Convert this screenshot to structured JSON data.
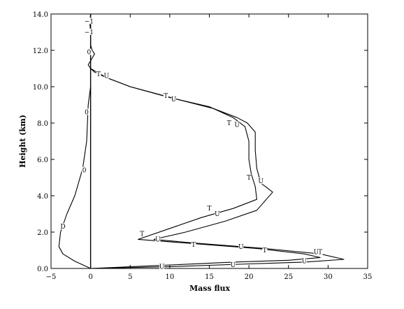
{
  "chart_data": {
    "type": "line",
    "title": "",
    "xlabel": "Mass flux",
    "ylabel": "Height (km)",
    "xlim": [
      -5,
      35
    ],
    "ylim": [
      0,
      14
    ],
    "x_ticks": [
      -5,
      0,
      5,
      10,
      15,
      20,
      25,
      30,
      35
    ],
    "y_ticks": [
      0.0,
      2.0,
      4.0,
      6.0,
      8.0,
      10.0,
      12.0,
      14.0
    ],
    "x_tick_labels": [
      "−5",
      "0",
      "5",
      "10",
      "15",
      "20",
      "25",
      "30",
      "35"
    ],
    "y_tick_labels": [
      "0.0",
      "2.0",
      "4.0",
      "6.0",
      "8.0",
      "10.0",
      "12.0",
      "14.0"
    ],
    "grid": false,
    "legend": "none",
    "line_color": "#000000",
    "reference_line_x": 0,
    "series": [
      {
        "name": "T",
        "label_color": "#000000",
        "points": [
          [
            0,
            0
          ],
          [
            8,
            0.15
          ],
          [
            18,
            0.35
          ],
          [
            25,
            0.45
          ],
          [
            29,
            0.6
          ],
          [
            27,
            0.8
          ],
          [
            21,
            1.1
          ],
          [
            12,
            1.4
          ],
          [
            6,
            1.6
          ],
          [
            10,
            2.2
          ],
          [
            14,
            2.8
          ],
          [
            18,
            3.3
          ],
          [
            21,
            3.8
          ],
          [
            20.8,
            4.5
          ],
          [
            20.3,
            5.2
          ],
          [
            20.0,
            6.0
          ],
          [
            20.0,
            7.0
          ],
          [
            19.5,
            7.8
          ],
          [
            18,
            8.3
          ],
          [
            15,
            8.9
          ],
          [
            10,
            9.4
          ],
          [
            5,
            10.0
          ],
          [
            2,
            10.5
          ],
          [
            0.8,
            10.8
          ],
          [
            0,
            11.0
          ],
          [
            -0.3,
            11.2
          ],
          [
            0.1,
            11.5
          ],
          [
            0.5,
            11.8
          ],
          [
            0.2,
            12.0
          ],
          [
            0,
            12.3
          ],
          [
            0,
            13.0
          ],
          [
            -0.1,
            13.5
          ],
          [
            0,
            14.0
          ]
        ],
        "marker_labels": [
          {
            "text": "T",
            "x": 1.0,
            "y": 10.7
          },
          {
            "text": "T",
            "x": 9.5,
            "y": 9.5
          },
          {
            "text": "T",
            "x": 17.5,
            "y": 8.0
          },
          {
            "text": "T",
            "x": 20.0,
            "y": 5.0
          },
          {
            "text": "T",
            "x": 15.0,
            "y": 3.3
          },
          {
            "text": "T",
            "x": 6.5,
            "y": 1.9
          },
          {
            "text": "T",
            "x": 13.0,
            "y": 1.3
          },
          {
            "text": "T",
            "x": 22.0,
            "y": 1.0
          },
          {
            "text": "T",
            "x": 29.0,
            "y": 0.9
          }
        ]
      },
      {
        "name": "U",
        "label_color": "#000000",
        "points": [
          [
            0,
            0
          ],
          [
            10,
            0.1
          ],
          [
            20,
            0.25
          ],
          [
            27,
            0.35
          ],
          [
            32,
            0.5
          ],
          [
            29,
            0.8
          ],
          [
            22,
            1.1
          ],
          [
            13,
            1.4
          ],
          [
            8,
            1.6
          ],
          [
            12,
            2.0
          ],
          [
            17,
            2.6
          ],
          [
            21,
            3.2
          ],
          [
            23,
            4.2
          ],
          [
            21.5,
            4.7
          ],
          [
            21.0,
            5.5
          ],
          [
            20.8,
            6.5
          ],
          [
            20.8,
            7.5
          ],
          [
            19.8,
            8.0
          ],
          [
            18.5,
            8.3
          ],
          [
            15.5,
            8.8
          ],
          [
            11,
            9.3
          ],
          [
            5,
            10.0
          ],
          [
            2,
            10.5
          ],
          [
            0.5,
            10.8
          ],
          [
            0,
            11.0
          ]
        ],
        "marker_labels": [
          {
            "text": "U",
            "x": 2.0,
            "y": 10.6
          },
          {
            "text": "U",
            "x": 10.5,
            "y": 9.3
          },
          {
            "text": "U",
            "x": 18.5,
            "y": 7.9
          },
          {
            "text": "U",
            "x": 21.5,
            "y": 4.8
          },
          {
            "text": "U",
            "x": 16.0,
            "y": 3.0
          },
          {
            "text": "U",
            "x": 8.5,
            "y": 1.6
          },
          {
            "text": "U",
            "x": 19.0,
            "y": 1.2
          },
          {
            "text": "U",
            "x": 28.5,
            "y": 0.9
          },
          {
            "text": "U",
            "x": 27.0,
            "y": 0.4
          },
          {
            "text": "U",
            "x": 18.0,
            "y": 0.2
          },
          {
            "text": "U",
            "x": 9.0,
            "y": 0.1
          }
        ]
      },
      {
        "name": "D",
        "label_color": "#000000",
        "points": [
          [
            0,
            0
          ],
          [
            -2,
            0.4
          ],
          [
            -3.5,
            0.8
          ],
          [
            -4,
            1.2
          ],
          [
            -3.8,
            2.0
          ],
          [
            -3,
            3.0
          ],
          [
            -2,
            4.0
          ],
          [
            -1,
            5.5
          ],
          [
            -0.5,
            7.0
          ],
          [
            -0.3,
            9.0
          ],
          [
            0,
            10.0
          ]
        ],
        "marker_labels": [
          {
            "text": "D",
            "x": -3.5,
            "y": 2.3
          },
          {
            "text": "0",
            "x": -0.8,
            "y": 5.4
          },
          {
            "text": "0",
            "x": -0.5,
            "y": 8.6
          },
          {
            "text": "0",
            "x": -0.2,
            "y": 11.9
          },
          {
            "text": "−1",
            "x": -0.2,
            "y": 13.0
          },
          {
            "text": "−1",
            "x": -0.2,
            "y": 13.6
          }
        ]
      }
    ]
  }
}
